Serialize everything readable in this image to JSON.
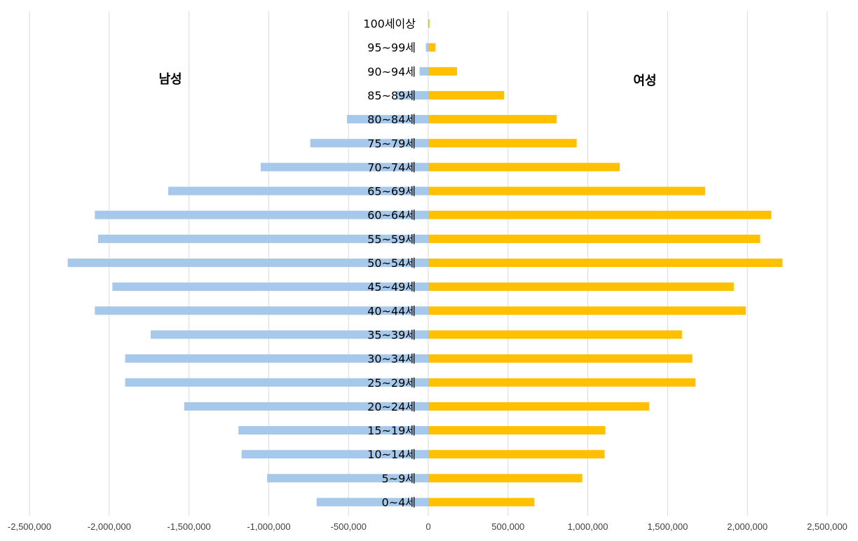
{
  "chart_data": {
    "type": "bar",
    "orientation": "horizontal",
    "style": "population-pyramid",
    "title": "",
    "xlabel": "",
    "ylabel": "",
    "xlim": [
      -2500000,
      2500000
    ],
    "x_ticks": [
      -2500000,
      -2000000,
      -1500000,
      -1000000,
      -500000,
      0,
      500000,
      1000000,
      1500000,
      2000000,
      2500000
    ],
    "x_tick_labels": [
      "-2,500,000",
      "-2,000,000",
      "-1,500,000",
      "-1,000,000",
      "-500,000",
      "0",
      "500,000",
      "1,000,000",
      "1,500,000",
      "2,000,000",
      "2,500,000"
    ],
    "grid": true,
    "categories": [
      "100세이상",
      "95~99세",
      "90~94세",
      "85~89세",
      "80~84세",
      "75~79세",
      "70~74세",
      "65~69세",
      "60~64세",
      "55~59세",
      "50~54세",
      "45~49세",
      "40~44세",
      "35~39세",
      "30~34세",
      "25~29세",
      "20~24세",
      "15~19세",
      "10~14세",
      "5~9세",
      "0~4세"
    ],
    "series": [
      {
        "name": "남성",
        "color": "#A6C8EA",
        "values": [
          -2000,
          -15000,
          -55000,
          -200000,
          -510000,
          -740000,
          -1050000,
          -1630000,
          -2090000,
          -2070000,
          -2260000,
          -1980000,
          -2090000,
          -1740000,
          -1900000,
          -1900000,
          -1530000,
          -1190000,
          -1170000,
          -1010000,
          -700000
        ]
      },
      {
        "name": "여성",
        "color": "#FFC000",
        "values": [
          8000,
          45000,
          180000,
          475000,
          805000,
          930000,
          1200000,
          1735000,
          2150000,
          2080000,
          2220000,
          1915000,
          1990000,
          1590000,
          1655000,
          1675000,
          1385000,
          1110000,
          1105000,
          965000,
          665000
        ]
      }
    ]
  }
}
